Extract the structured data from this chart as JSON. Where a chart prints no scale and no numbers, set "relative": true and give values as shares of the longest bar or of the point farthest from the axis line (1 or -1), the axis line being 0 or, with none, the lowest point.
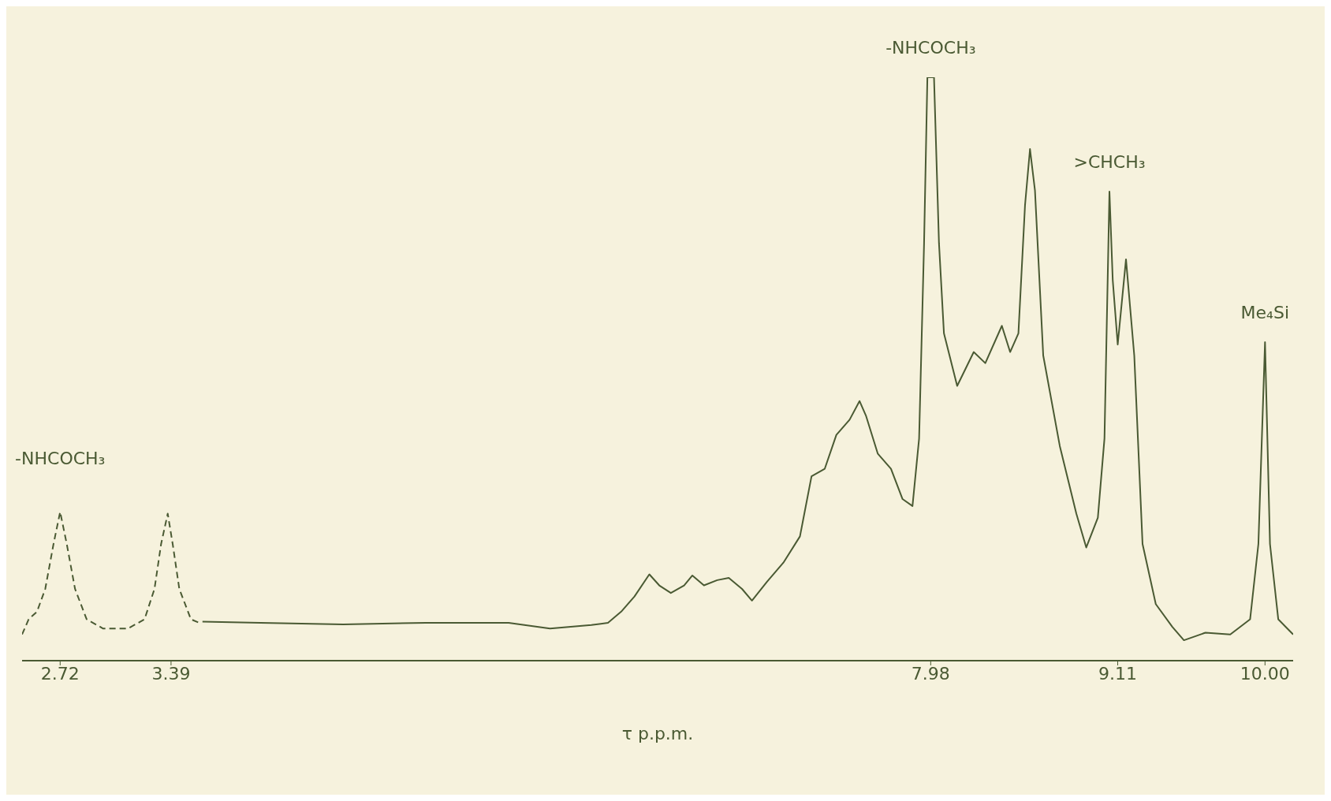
{
  "chart_data": {
    "type": "line",
    "relative": true,
    "xlabel": "τ p.p.m.",
    "xlim": [
      2.49,
      10.17
    ],
    "xticks": [
      2.72,
      3.39,
      7.98,
      9.11,
      {
        "value": 10,
        "label": "10.00"
      }
    ],
    "grid": false,
    "legend": false,
    "marker": "none",
    "annotations": [
      {
        "text": "-NHCOCH₃",
        "x": 2.72,
        "y": 0.255
      },
      {
        "text": "-NHCOCH₃",
        "x": 7.98,
        "y": 1.0
      },
      {
        "text": ">CHCH₃",
        "x": 9.06,
        "y": 0.804
      },
      {
        "text": "Me₄Si",
        "x": 10.0,
        "y": 0.546
      }
    ],
    "series": [
      {
        "color": "#4a5a33",
        "line_style": "dashed",
        "x": [
          2.49,
          2.53,
          2.58,
          2.63,
          2.68,
          2.72,
          2.76,
          2.81,
          2.88,
          2.98,
          3.13,
          3.23,
          3.29,
          3.33,
          3.37,
          3.4,
          3.44,
          3.51,
          3.56
        ],
        "values": [
          0.045,
          0.071,
          0.084,
          0.123,
          0.2,
          0.255,
          0.2,
          0.123,
          0.071,
          0.055,
          0.055,
          0.071,
          0.123,
          0.2,
          0.252,
          0.2,
          0.123,
          0.071,
          0.065
        ]
      },
      {
        "color": "#4a5a33",
        "line_style": "solid",
        "x": [
          3.58,
          3.93,
          4.43,
          4.93,
          5.43,
          5.68,
          5.93,
          6.03,
          6.11,
          6.19,
          6.28,
          6.34,
          6.41,
          6.49,
          6.54,
          6.61,
          6.69,
          6.76,
          6.84,
          6.9,
          6.99,
          7.09,
          7.19,
          7.26,
          7.34,
          7.41,
          7.49,
          7.55,
          7.59,
          7.66,
          7.74,
          7.81,
          7.87,
          7.91,
          7.94,
          7.96,
          8.0,
          8.03,
          8.06,
          8.14,
          8.24,
          8.31,
          8.41,
          8.46,
          8.51,
          8.55,
          8.58,
          8.61,
          8.66,
          8.76,
          8.86,
          8.92,
          8.99,
          9.03,
          9.06,
          9.08,
          9.11,
          9.16,
          9.21,
          9.26,
          9.34,
          9.44,
          9.51,
          9.64,
          9.79,
          9.91,
          9.96,
          10.0,
          10.03,
          10.08,
          10.17
        ],
        "values": [
          0.067,
          0.065,
          0.062,
          0.065,
          0.065,
          0.055,
          0.061,
          0.065,
          0.084,
          0.11,
          0.148,
          0.129,
          0.116,
          0.129,
          0.146,
          0.129,
          0.138,
          0.142,
          0.123,
          0.103,
          0.135,
          0.168,
          0.213,
          0.316,
          0.329,
          0.387,
          0.413,
          0.445,
          0.419,
          0.355,
          0.329,
          0.277,
          0.265,
          0.381,
          0.716,
          1.0,
          1.0,
          0.716,
          0.561,
          0.471,
          0.529,
          0.51,
          0.574,
          0.529,
          0.561,
          0.781,
          0.877,
          0.806,
          0.523,
          0.368,
          0.252,
          0.194,
          0.245,
          0.381,
          0.804,
          0.652,
          0.542,
          0.688,
          0.523,
          0.2,
          0.097,
          0.058,
          0.035,
          0.048,
          0.045,
          0.071,
          0.2,
          0.546,
          0.2,
          0.071,
          0.045
        ]
      }
    ]
  }
}
